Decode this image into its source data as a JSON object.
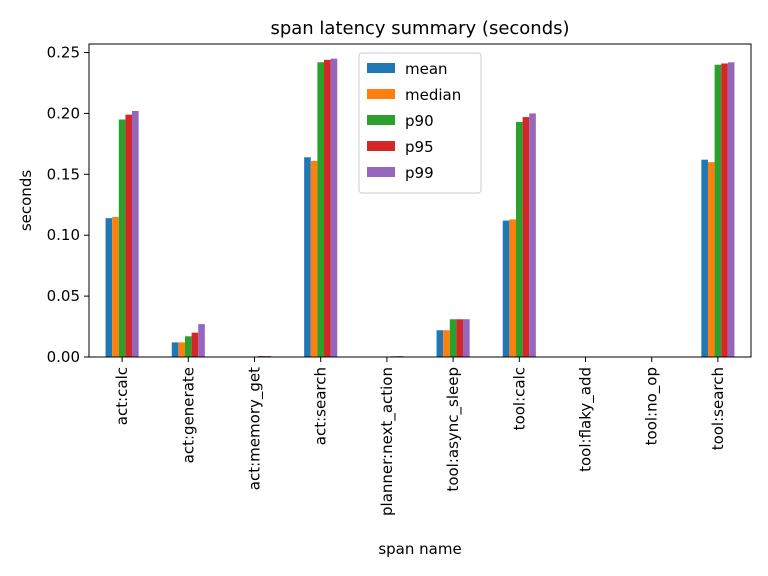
{
  "chart_data": {
    "type": "bar",
    "title": "span latency summary (seconds)",
    "xlabel": "span name",
    "ylabel": "seconds",
    "ylim": [
      0,
      0.257
    ],
    "yticks": [
      0.0,
      0.05,
      0.1,
      0.15,
      0.2,
      0.25
    ],
    "ytick_labels": [
      "0.00",
      "0.05",
      "0.10",
      "0.15",
      "0.20",
      "0.25"
    ],
    "grid": false,
    "legend_position": "top-center",
    "categories": [
      "act:calc",
      "act:generate",
      "act:memory_get",
      "act:search",
      "planner:next_action",
      "tool:async_sleep",
      "tool:calc",
      "tool:flaky_add",
      "tool:no_op",
      "tool:search"
    ],
    "series": [
      {
        "name": "mean",
        "color": "#1f77b4",
        "values": [
          0.114,
          0.012,
          0.0002,
          0.164,
          0.0003,
          0.022,
          0.112,
          0.0001,
          0.0001,
          0.162
        ]
      },
      {
        "name": "median",
        "color": "#ff7f0e",
        "values": [
          0.115,
          0.012,
          0.0002,
          0.161,
          0.0003,
          0.022,
          0.113,
          0.0001,
          0.0001,
          0.16
        ]
      },
      {
        "name": "p90",
        "color": "#2ca02c",
        "values": [
          0.195,
          0.017,
          0.0003,
          0.242,
          0.0004,
          0.031,
          0.193,
          0.0001,
          0.0001,
          0.24
        ]
      },
      {
        "name": "p95",
        "color": "#d62728",
        "values": [
          0.199,
          0.02,
          0.0008,
          0.244,
          0.0006,
          0.031,
          0.197,
          0.0001,
          0.0001,
          0.241
        ]
      },
      {
        "name": "p99",
        "color": "#9467bd",
        "values": [
          0.202,
          0.027,
          0.0008,
          0.245,
          0.0008,
          0.031,
          0.2,
          0.0001,
          0.0001,
          0.242
        ]
      }
    ]
  }
}
